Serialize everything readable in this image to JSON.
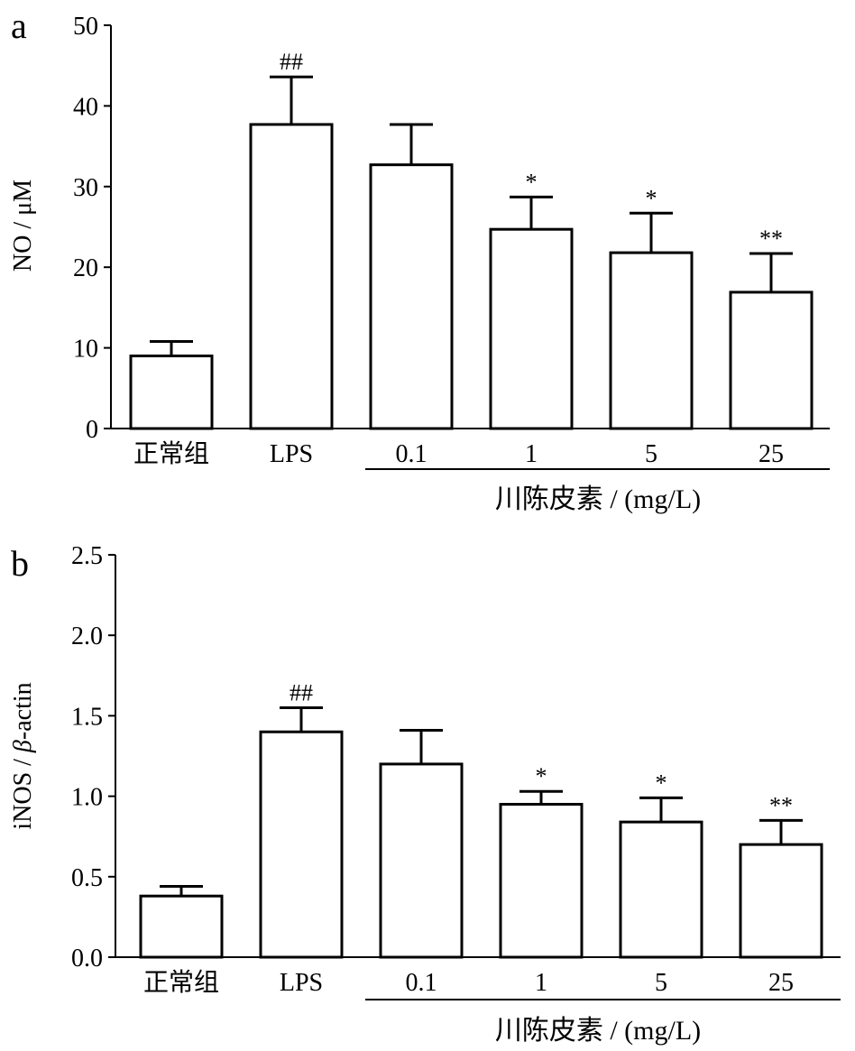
{
  "chart_data": [
    {
      "type": "bar",
      "panel_label": "a",
      "categories": [
        "正常组",
        "LPS",
        "0.1",
        "1",
        "5",
        "25"
      ],
      "values": [
        9,
        37.7,
        32.7,
        24.7,
        21.8,
        16.9
      ],
      "error": [
        1.8,
        5.9,
        5.0,
        4.0,
        4.9,
        4.8
      ],
      "significance": [
        "",
        "##",
        "",
        "*",
        "*",
        "**"
      ],
      "ylabel": "NO / μM",
      "ylim": [
        0,
        50
      ],
      "yticks": [
        0,
        10,
        20,
        30,
        40,
        50
      ],
      "group_label": "川陈皮素 / (mg/L)",
      "group_categories": [
        "0.1",
        "1",
        "5",
        "25"
      ],
      "grid": false,
      "legend": "none"
    },
    {
      "type": "bar",
      "panel_label": "b",
      "categories": [
        "正常组",
        "LPS",
        "0.1",
        "1",
        "5",
        "25"
      ],
      "values": [
        0.38,
        1.4,
        1.2,
        0.95,
        0.84,
        0.7
      ],
      "error": [
        0.06,
        0.15,
        0.21,
        0.08,
        0.15,
        0.15
      ],
      "significance": [
        "",
        "##",
        "",
        "*",
        "*",
        "**"
      ],
      "ylabel_prefix": "iNOS / ",
      "ylabel_greek": "β",
      "ylabel_suffix": "-actin",
      "ylim": [
        0,
        2.5
      ],
      "yticks": [
        "0.0",
        "0.5",
        "1.0",
        "1.5",
        "2.0",
        "2.5"
      ],
      "group_label": "川陈皮素 / (mg/L)",
      "group_categories": [
        "0.1",
        "1",
        "5",
        "25"
      ],
      "grid": false,
      "legend": "none"
    }
  ]
}
